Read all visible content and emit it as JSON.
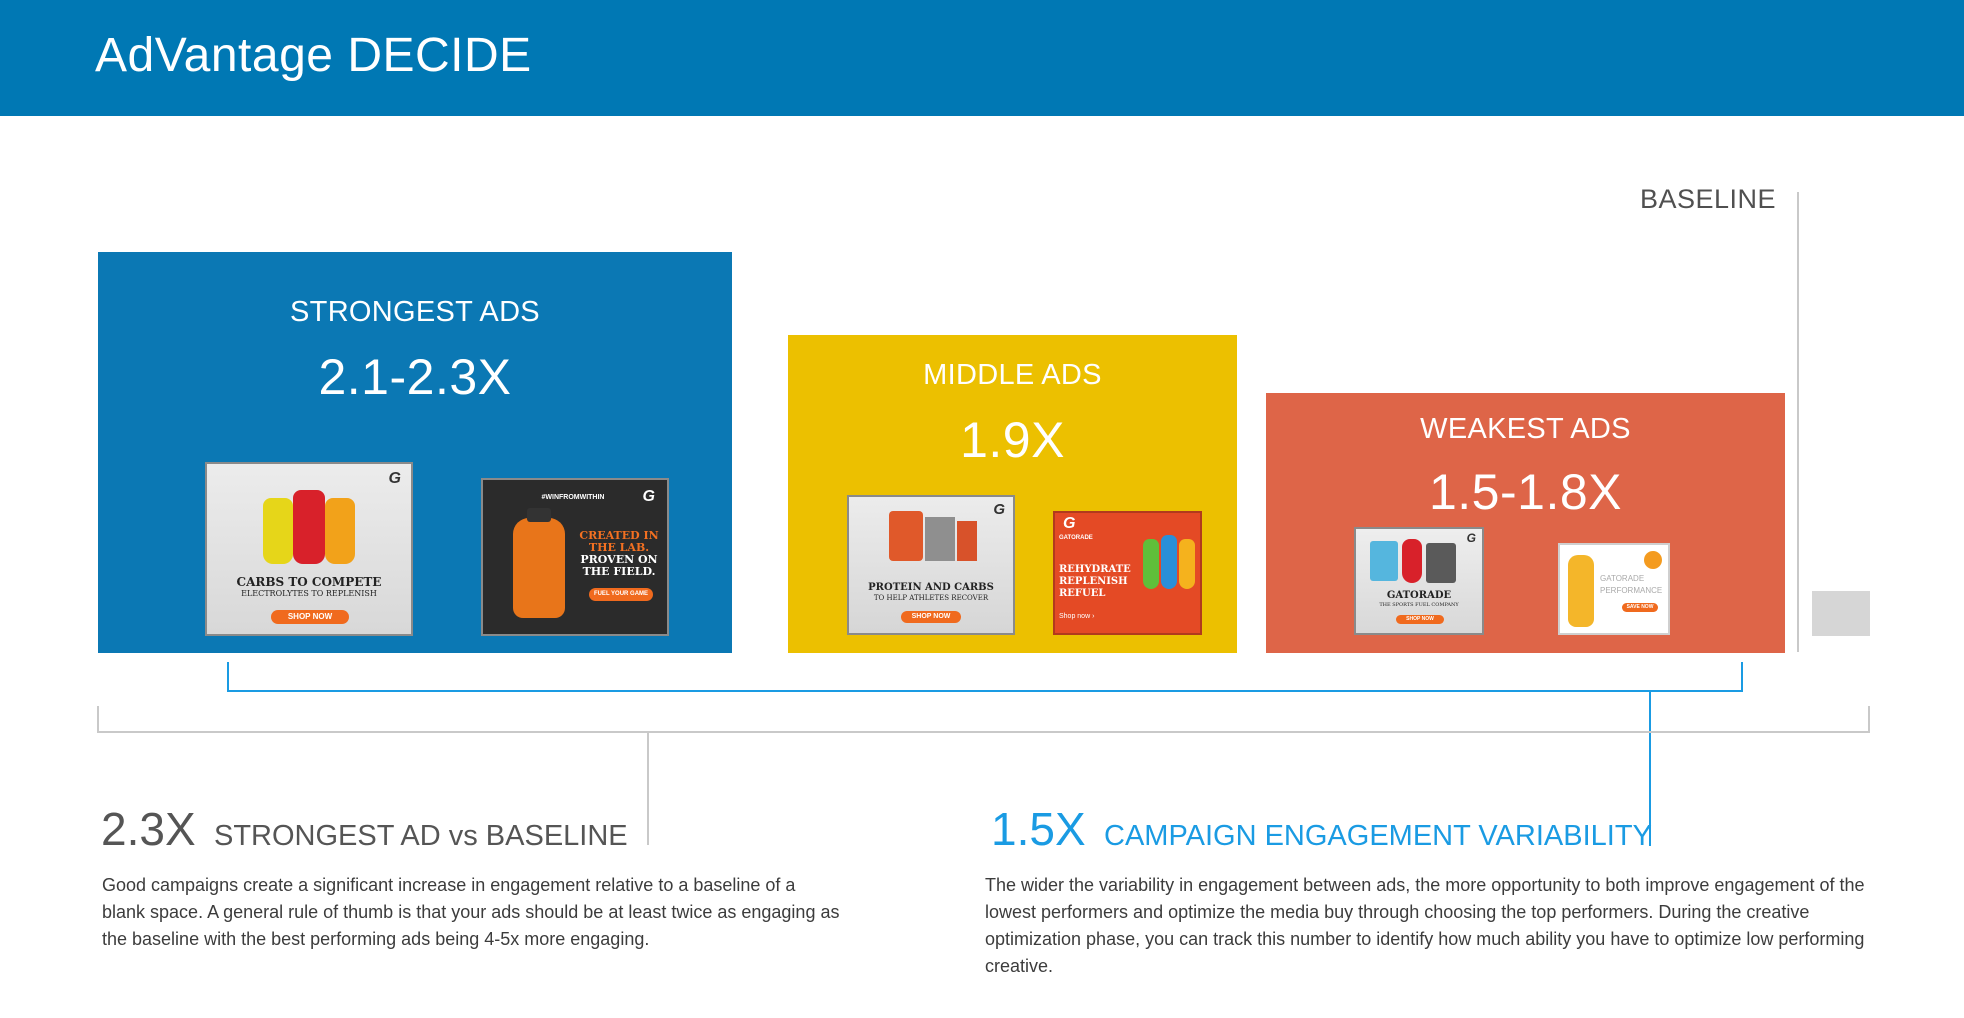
{
  "header": {
    "title": "AdVantage DECIDE"
  },
  "baseline": {
    "label": "BASELINE"
  },
  "panels": {
    "strongest": {
      "label": "STRONGEST ADS",
      "value": "2.1-2.3X",
      "color": "#0b78b4"
    },
    "middle": {
      "label": "MIDDLE ADS",
      "value": "1.9X",
      "color": "#ecc000"
    },
    "weakest": {
      "label": "WEAKEST ADS",
      "value": "1.5-1.8X",
      "color": "#de6548"
    }
  },
  "ads": {
    "a1": {
      "headline": "CARBS TO COMPETE",
      "sub": "ELECTROLYTES TO REPLENISH",
      "cta": "SHOP NOW",
      "logo": "G"
    },
    "a2": {
      "hashtag": "#WINFROMWITHIN",
      "line1": "CREATED IN",
      "line2": "THE LAB.",
      "line3": "PROVEN ON",
      "line4": "THE FIELD.",
      "cta": "FUEL YOUR GAME",
      "logo": "G"
    },
    "a3": {
      "headline": "PROTEIN AND CARBS",
      "sub": "TO HELP ATHLETES RECOVER",
      "cta": "SHOP NOW",
      "logo": "G"
    },
    "a4": {
      "brand": "GATORADE",
      "line1": "REHYDRATE",
      "line2": "REPLENISH",
      "line3": "REFUEL",
      "cta": "Shop now ›",
      "logo": "G"
    },
    "a5": {
      "headline": "GATORADE",
      "sub": "THE SPORTS FUEL COMPANY",
      "cta": "SHOP NOW",
      "logo": "G"
    },
    "a6": {
      "line1": "GATORADE",
      "line2": "PERFORMANCE",
      "cta": "SAVE NOW"
    }
  },
  "stats": {
    "left": {
      "value": "2.3X",
      "label": "STRONGEST AD vs BASELINE",
      "color": "#555555",
      "text": "Good campaigns create a significant increase in engagement relative to a baseline of a blank space. A general rule of thumb is that your ads should be at least twice as engaging as the baseline with the best performing ads being 4-5x more engaging."
    },
    "right": {
      "value": "1.5X",
      "label": "CAMPAIGN ENGAGEMENT VARIABILITY",
      "color": "#1a9be3",
      "text": "The wider the variability in engagement between ads, the more opportunity to both improve engagement of the lowest performers and optimize the media buy through choosing the top performers. During the creative optimization phase, you can track this number to identify how much ability you have to optimize low performing creative."
    }
  },
  "colors": {
    "header": "#0078b4",
    "bracket_blue": "#1a9be3",
    "gray_line": "#c9c9c9"
  }
}
